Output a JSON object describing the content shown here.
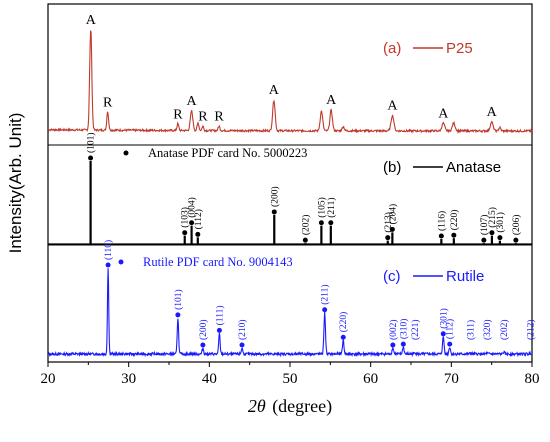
{
  "chart_data": {
    "type": "line",
    "title": "",
    "xlabel": "2θ (degree)",
    "xlabel_parts": {
      "symbol": "2θ",
      "text": "(degree)"
    },
    "ylabel": "Intensity(Arb. Unit)",
    "xlim": [
      20,
      80
    ],
    "x_ticks": [
      20,
      30,
      40,
      50,
      60,
      70,
      80
    ],
    "grid": false,
    "colors": {
      "p25": "#c0392b",
      "anatase": "#000000",
      "rutile": "#1a1aff",
      "frame": "#000000"
    },
    "panels": [
      {
        "id": "a",
        "legend_tag": "(a)",
        "legend_label": "P25",
        "series": {
          "name": "P25",
          "peaks": [
            {
              "x": 25.3,
              "h": 0.92,
              "w": 0.3,
              "label": "A"
            },
            {
              "x": 27.4,
              "h": 0.17,
              "w": 0.25,
              "label": "R"
            },
            {
              "x": 36.1,
              "h": 0.06,
              "w": 0.25,
              "label": "R"
            },
            {
              "x": 37.8,
              "h": 0.18,
              "w": 0.35,
              "label": "A"
            },
            {
              "x": 38.6,
              "h": 0.07,
              "w": 0.25,
              "label": ""
            },
            {
              "x": 39.2,
              "h": 0.04,
              "w": 0.25,
              "label": "R"
            },
            {
              "x": 41.2,
              "h": 0.04,
              "w": 0.25,
              "label": "R"
            },
            {
              "x": 48.0,
              "h": 0.28,
              "w": 0.35,
              "label": "A"
            },
            {
              "x": 53.9,
              "h": 0.18,
              "w": 0.35,
              "label": ""
            },
            {
              "x": 55.1,
              "h": 0.19,
              "w": 0.35,
              "label": "A"
            },
            {
              "x": 56.6,
              "h": 0.04,
              "w": 0.3,
              "label": ""
            },
            {
              "x": 62.7,
              "h": 0.14,
              "w": 0.4,
              "label": "A"
            },
            {
              "x": 69.0,
              "h": 0.07,
              "w": 0.4,
              "label": "A"
            },
            {
              "x": 70.3,
              "h": 0.07,
              "w": 0.4,
              "label": ""
            },
            {
              "x": 75.0,
              "h": 0.08,
              "w": 0.4,
              "label": "A"
            },
            {
              "x": 76.0,
              "h": 0.03,
              "w": 0.3,
              "label": ""
            }
          ]
        }
      },
      {
        "id": "b",
        "legend_tag": "(b)",
        "legend_label": "Anatase",
        "reference": "Anatase PDF card No. 5000223",
        "series": {
          "name": "Anatase",
          "sticks": [
            {
              "x": 25.28,
              "h": 1.0,
              "hkl": "(101)"
            },
            {
              "x": 36.95,
              "h": 0.1,
              "hkl": "(103)"
            },
            {
              "x": 37.8,
              "h": 0.22,
              "hkl": "(004)"
            },
            {
              "x": 38.57,
              "h": 0.08,
              "hkl": "(112)"
            },
            {
              "x": 48.05,
              "h": 0.35,
              "hkl": "(200)"
            },
            {
              "x": 51.9,
              "h": 0.01,
              "hkl": "(202)"
            },
            {
              "x": 53.89,
              "h": 0.22,
              "hkl": "(105)"
            },
            {
              "x": 55.06,
              "h": 0.22,
              "hkl": "(211)"
            },
            {
              "x": 62.12,
              "h": 0.04,
              "hkl": "(213)"
            },
            {
              "x": 62.69,
              "h": 0.14,
              "hkl": "(204)"
            },
            {
              "x": 68.76,
              "h": 0.06,
              "hkl": "(116)"
            },
            {
              "x": 70.31,
              "h": 0.07,
              "hkl": "(220)"
            },
            {
              "x": 74.03,
              "h": 0.01,
              "hkl": "(107)"
            },
            {
              "x": 75.03,
              "h": 0.1,
              "hkl": "(215)"
            },
            {
              "x": 76.02,
              "h": 0.04,
              "hkl": "(301)"
            },
            {
              "x": 78.0,
              "h": 0.01,
              "hkl": "(206)"
            }
          ]
        }
      },
      {
        "id": "c",
        "legend_tag": "(c)",
        "legend_label": "Rutile",
        "reference": "Rutile PDF card No. 9004143",
        "series": {
          "name": "Rutile",
          "peaks": [
            {
              "x": 27.45,
              "h": 1.0,
              "w": 0.18,
              "hkl": "(110)"
            },
            {
              "x": 36.1,
              "h": 0.42,
              "w": 0.2,
              "hkl": "(101)"
            },
            {
              "x": 39.2,
              "h": 0.07,
              "w": 0.2,
              "hkl": "(200)"
            },
            {
              "x": 41.25,
              "h": 0.24,
              "w": 0.2,
              "hkl": "(111)"
            },
            {
              "x": 44.05,
              "h": 0.07,
              "w": 0.2,
              "hkl": "(210)"
            },
            {
              "x": 54.3,
              "h": 0.48,
              "w": 0.22,
              "hkl": "(211)"
            },
            {
              "x": 56.6,
              "h": 0.16,
              "w": 0.22,
              "hkl": "(220)"
            },
            {
              "x": 62.75,
              "h": 0.07,
              "w": 0.22,
              "hkl": "(002)"
            },
            {
              "x": 64.05,
              "h": 0.08,
              "w": 0.22,
              "hkl": "(310)"
            },
            {
              "x": 65.5,
              "h": 0.02,
              "w": 0.22,
              "hkl": "(221)"
            },
            {
              "x": 69.0,
              "h": 0.2,
              "w": 0.22,
              "hkl": "(301)"
            },
            {
              "x": 69.8,
              "h": 0.08,
              "w": 0.22,
              "hkl": "(112)"
            },
            {
              "x": 72.4,
              "h": 0.01,
              "w": 0.22,
              "hkl": "(311)"
            },
            {
              "x": 74.4,
              "h": 0.01,
              "w": 0.22,
              "hkl": "(320)"
            },
            {
              "x": 76.5,
              "h": 0.02,
              "w": 0.22,
              "hkl": "(202)"
            },
            {
              "x": 79.8,
              "h": 0.01,
              "w": 0.22,
              "hkl": "(212)"
            }
          ]
        }
      }
    ]
  }
}
